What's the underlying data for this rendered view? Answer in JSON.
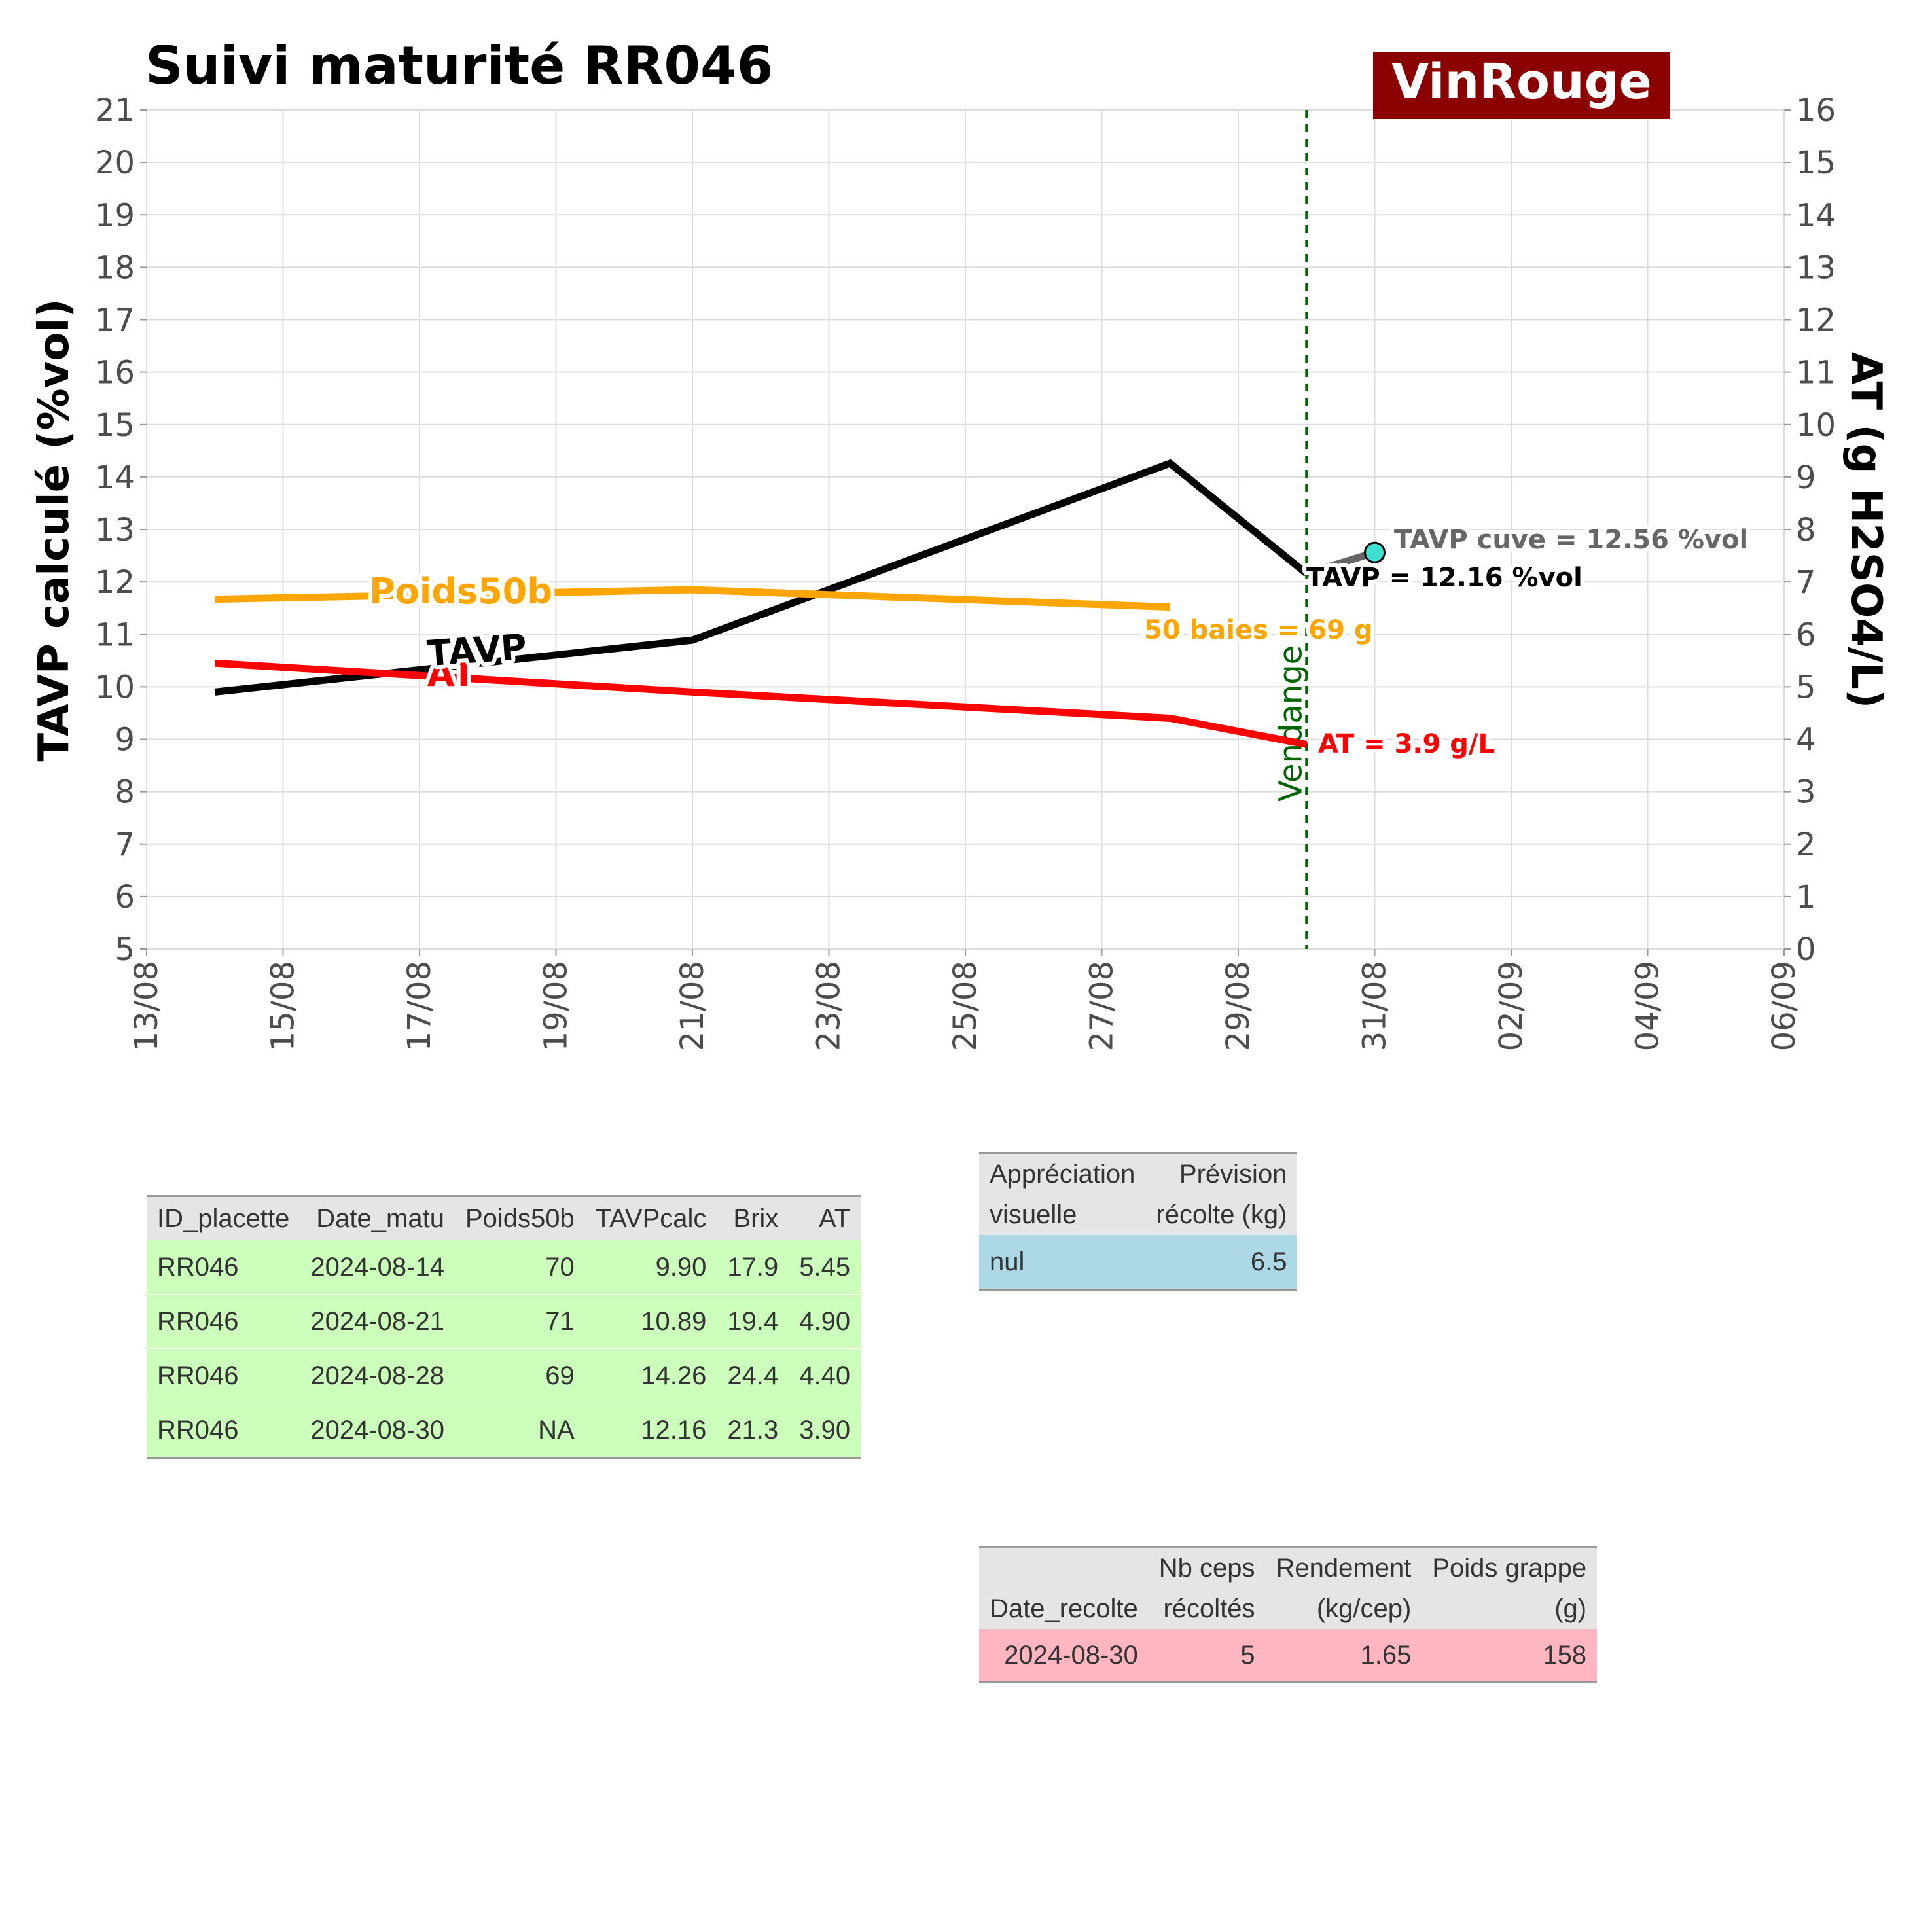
{
  "chart_data": {
    "type": "line",
    "title": "Suivi maturité  RR046",
    "badge": "VinRouge",
    "x_unit": "date",
    "x_ticks": [
      "13/08",
      "15/08",
      "17/08",
      "19/08",
      "21/08",
      "23/08",
      "25/08",
      "27/08",
      "29/08",
      "31/08",
      "02/09",
      "04/09",
      "06/09"
    ],
    "xlim": [
      "2024-08-13",
      "2024-09-06"
    ],
    "ylabel_left": "TAVP calculé (%vol)",
    "ylim_left": [
      5,
      21
    ],
    "ylabel_right": "AT (g H2SO4/L)",
    "ylim_right": [
      0,
      16
    ],
    "grid": true,
    "series": [
      {
        "name": "TAVP",
        "axis": "left",
        "color": "#000000",
        "x": [
          "2024-08-14",
          "2024-08-21",
          "2024-08-28",
          "2024-08-30"
        ],
        "y": [
          9.9,
          10.89,
          14.26,
          12.16
        ]
      },
      {
        "name": "AT",
        "axis": "right",
        "color": "#ff0000",
        "x": [
          "2024-08-14",
          "2024-08-21",
          "2024-08-28",
          "2024-08-30"
        ],
        "y": [
          5.45,
          4.9,
          4.4,
          3.9
        ]
      },
      {
        "name": "Poids50b",
        "axis": "left",
        "color": "#ffa500",
        "x": [
          "2024-08-14",
          "2024-08-21",
          "2024-08-28"
        ],
        "y": [
          11.67,
          11.85,
          11.52
        ]
      }
    ],
    "series_labels": [
      {
        "text": "TAVP",
        "color": "#000000"
      },
      {
        "text": "AT",
        "color": "#ff0000"
      },
      {
        "text": "Poids50b",
        "color": "#ffa500"
      }
    ],
    "cuve": {
      "x": "2024-08-31",
      "y": 12.56,
      "color": "#40e0d0",
      "line_color": "#666666"
    },
    "harvest_line": {
      "x": "2024-08-30",
      "label": "Vendange",
      "color": "#006400"
    },
    "annotations": [
      {
        "text": "TAVP cuve = 12.56 %vol",
        "color": "#666666"
      },
      {
        "text": "TAVP = 12.16 %vol",
        "color": "#000000"
      },
      {
        "text": "50 baies = 69 g",
        "color": "#ffa500"
      },
      {
        "text": "AT = 3.9 g/L",
        "color": "#ff0000"
      }
    ],
    "colors": {
      "badge_bg": "#8b0000",
      "grid": "#dddddd",
      "axis_text": "#4d4d4d"
    }
  },
  "table_maturite": {
    "headers": [
      "ID_placette",
      "Date_matu",
      "Poids50b",
      "TAVPcalc",
      "Brix",
      "AT"
    ],
    "rows": [
      [
        "RR046",
        "2024-08-14",
        "70",
        "9.90",
        "17.9",
        "5.45"
      ],
      [
        "RR046",
        "2024-08-21",
        "71",
        "10.89",
        "19.4",
        "4.90"
      ],
      [
        "RR046",
        "2024-08-28",
        "69",
        "14.26",
        "24.4",
        "4.40"
      ],
      [
        "RR046",
        "2024-08-30",
        "NA",
        "12.16",
        "21.3",
        "3.90"
      ]
    ],
    "row_color": "#ccffbb"
  },
  "table_visuelle": {
    "headers": [
      [
        "Appréciation",
        "visuelle"
      ],
      [
        "Prévision",
        "récolte (kg)"
      ]
    ],
    "rows": [
      [
        "nul",
        "6.5"
      ]
    ],
    "row_color": "#add8e6"
  },
  "table_recolte": {
    "headers": [
      [
        "",
        "Date_recolte"
      ],
      [
        "Nb ceps",
        "récoltés"
      ],
      [
        "Rendement",
        "(kg/cep)"
      ],
      [
        "Poids grappe",
        "(g)"
      ]
    ],
    "rows": [
      [
        "2024-08-30",
        "5",
        "1.65",
        "158"
      ]
    ],
    "row_color": "#ffb6c1"
  }
}
